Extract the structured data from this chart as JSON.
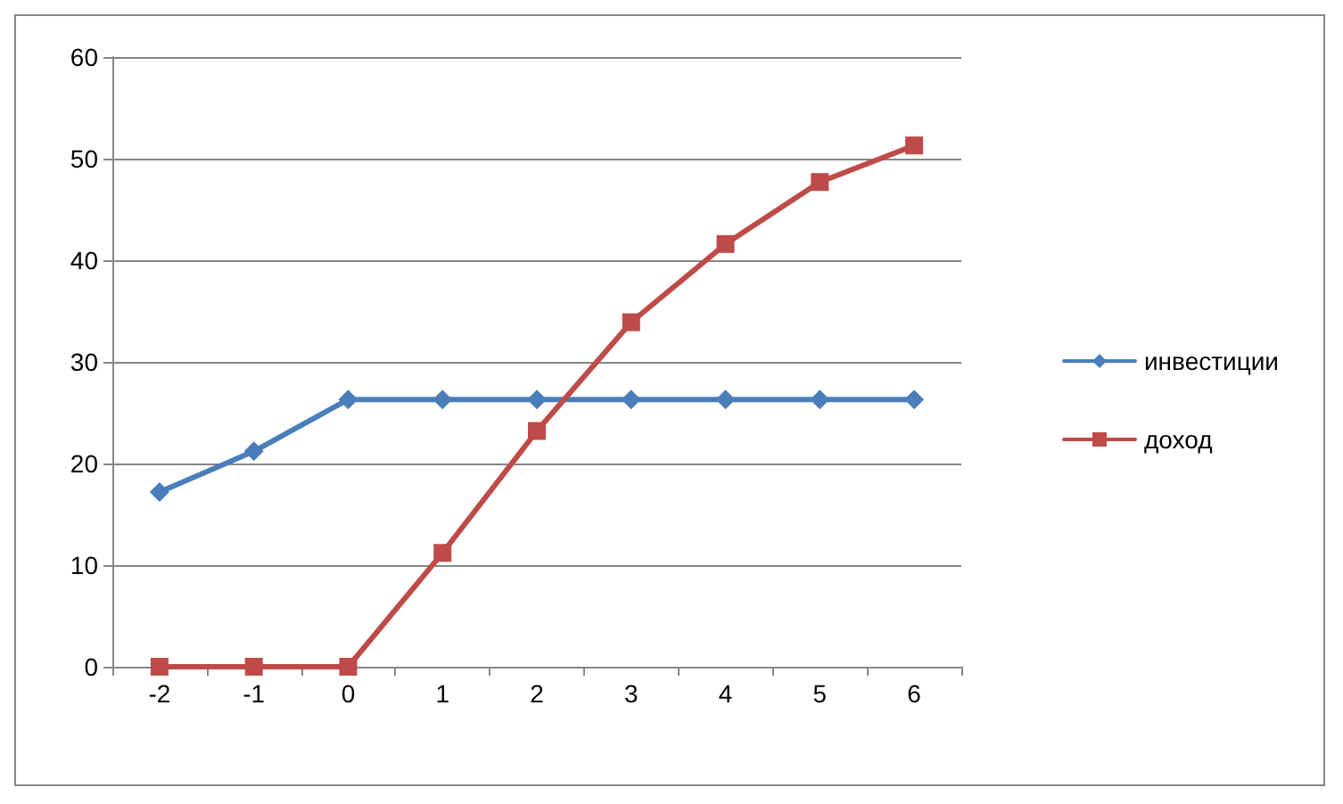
{
  "chart_data": {
    "type": "line",
    "categories": [
      "-2",
      "-1",
      "0",
      "1",
      "2",
      "3",
      "4",
      "5",
      "6"
    ],
    "series": [
      {
        "name": "инвестиции",
        "color": "#4a7ebb",
        "marker": "diamond",
        "values": [
          17.2,
          21.2,
          26.3,
          26.3,
          26.3,
          26.3,
          26.3,
          26.3,
          26.3
        ]
      },
      {
        "name": "доход",
        "color": "#be4b48",
        "marker": "square",
        "values": [
          0,
          0,
          0,
          11.2,
          23.2,
          33.9,
          41.6,
          47.7,
          51.3
        ]
      }
    ],
    "ylim": [
      0,
      60
    ],
    "yticks": [
      0,
      10,
      20,
      30,
      40,
      50,
      60
    ],
    "grid": "y",
    "legend": "right",
    "line_style": "solid"
  }
}
